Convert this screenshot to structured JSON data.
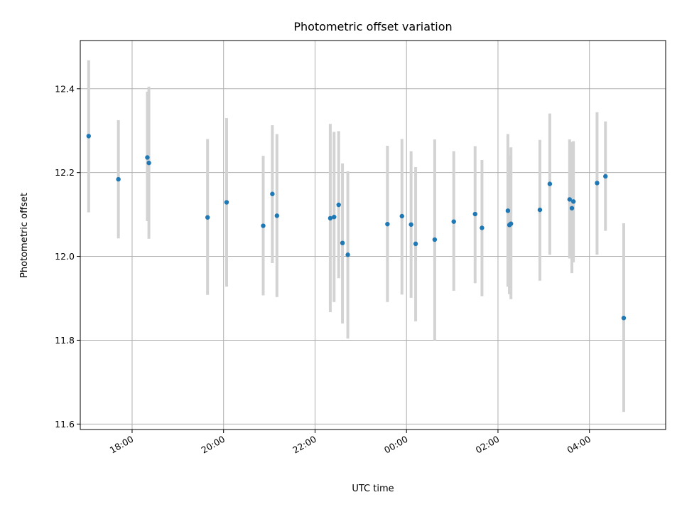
{
  "chart_data": {
    "type": "scatter",
    "title": "Photometric offset variation",
    "xlabel": "UTC time",
    "ylabel": "Photometric offset",
    "x_axis_type": "time",
    "xlim": [
      "16:52",
      "05:40"
    ],
    "ylim": [
      11.587,
      12.515
    ],
    "x_ticks": [
      "18:00",
      "20:00",
      "22:00",
      "00:00",
      "02:00",
      "04:00"
    ],
    "y_ticks": [
      "11.6",
      "11.8",
      "12.0",
      "12.2",
      "12.4"
    ],
    "grid": true,
    "legend": "none",
    "colors": {
      "points": "#1f77b4",
      "errorbars": "#d3d3d3",
      "grid": "#b0b0b0"
    },
    "points": [
      {
        "x": "17:03",
        "y": 12.287,
        "err_low": 12.105,
        "err_high": 12.468
      },
      {
        "x": "17:42",
        "y": 12.184,
        "err_low": 12.043,
        "err_high": 12.325
      },
      {
        "x": "18:20",
        "y": 12.236,
        "err_low": 12.084,
        "err_high": 12.393
      },
      {
        "x": "18:22",
        "y": 12.223,
        "err_low": 12.042,
        "err_high": 12.405
      },
      {
        "x": "19:39",
        "y": 12.093,
        "err_low": 11.908,
        "err_high": 12.28
      },
      {
        "x": "20:04",
        "y": 12.129,
        "err_low": 11.928,
        "err_high": 12.33
      },
      {
        "x": "20:52",
        "y": 12.073,
        "err_low": 11.907,
        "err_high": 12.24
      },
      {
        "x": "21:04",
        "y": 12.149,
        "err_low": 11.984,
        "err_high": 12.313
      },
      {
        "x": "21:10",
        "y": 12.097,
        "err_low": 11.903,
        "err_high": 12.292
      },
      {
        "x": "22:20",
        "y": 12.091,
        "err_low": 11.867,
        "err_high": 12.316
      },
      {
        "x": "22:25",
        "y": 12.094,
        "err_low": 11.891,
        "err_high": 12.297
      },
      {
        "x": "22:31",
        "y": 12.123,
        "err_low": 11.948,
        "err_high": 12.299
      },
      {
        "x": "22:36",
        "y": 12.032,
        "err_low": 11.84,
        "err_high": 12.222
      },
      {
        "x": "22:43",
        "y": 12.004,
        "err_low": 11.804,
        "err_high": 12.203
      },
      {
        "x": "23:35",
        "y": 12.077,
        "err_low": 11.891,
        "err_high": 12.264
      },
      {
        "x": "23:54",
        "y": 12.096,
        "err_low": 11.909,
        "err_high": 12.28
      },
      {
        "x": "00:06",
        "y": 12.076,
        "err_low": 11.901,
        "err_high": 12.251
      },
      {
        "x": "00:12",
        "y": 12.03,
        "err_low": 11.845,
        "err_high": 12.213
      },
      {
        "x": "00:37",
        "y": 12.04,
        "err_low": 11.8,
        "err_high": 12.279
      },
      {
        "x": "01:02",
        "y": 12.083,
        "err_low": 11.918,
        "err_high": 12.251
      },
      {
        "x": "01:30",
        "y": 12.101,
        "err_low": 11.936,
        "err_high": 12.263
      },
      {
        "x": "01:39",
        "y": 12.068,
        "err_low": 11.905,
        "err_high": 12.23
      },
      {
        "x": "02:13",
        "y": 12.109,
        "err_low": 11.928,
        "err_high": 12.292
      },
      {
        "x": "02:15",
        "y": 12.075,
        "err_low": 11.91,
        "err_high": 12.24
      },
      {
        "x": "02:17",
        "y": 12.078,
        "err_low": 11.898,
        "err_high": 12.26
      },
      {
        "x": "02:55",
        "y": 12.111,
        "err_low": 11.942,
        "err_high": 12.278
      },
      {
        "x": "03:08",
        "y": 12.173,
        "err_low": 12.004,
        "err_high": 12.341
      },
      {
        "x": "03:34",
        "y": 12.136,
        "err_low": 11.995,
        "err_high": 12.279
      },
      {
        "x": "03:37",
        "y": 12.115,
        "err_low": 11.96,
        "err_high": 12.273
      },
      {
        "x": "03:39",
        "y": 12.131,
        "err_low": 11.986,
        "err_high": 12.275
      },
      {
        "x": "04:10",
        "y": 12.175,
        "err_low": 12.004,
        "err_high": 12.344
      },
      {
        "x": "04:21",
        "y": 12.191,
        "err_low": 12.061,
        "err_high": 12.322
      },
      {
        "x": "04:45",
        "y": 11.853,
        "err_low": 11.629,
        "err_high": 12.079
      }
    ]
  }
}
